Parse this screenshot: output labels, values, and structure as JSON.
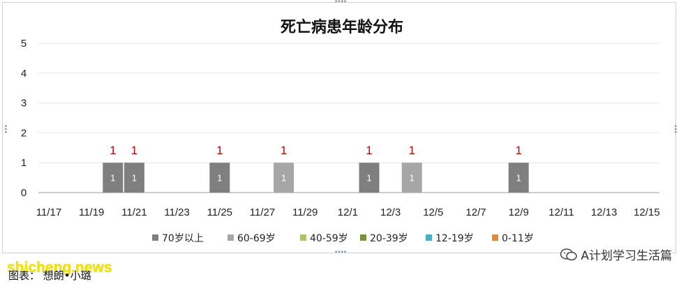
{
  "chart_data": {
    "type": "bar",
    "title": "死亡病患年龄分布",
    "x_tick_labels": [
      "11/17",
      "11/19",
      "11/21",
      "11/23",
      "11/25",
      "11/27",
      "11/29",
      "12/1",
      "12/3",
      "12/5",
      "12/7",
      "12/9",
      "12/11",
      "12/13",
      "12/15"
    ],
    "ylim": [
      0,
      5
    ],
    "y_ticks": [
      0,
      1,
      2,
      3,
      4,
      5
    ],
    "grid": true,
    "legend_position": "bottom",
    "series": [
      {
        "name": "70岁以上",
        "color": "#7f7f7f",
        "points": [
          {
            "x": "11/20",
            "value": 1
          },
          {
            "x": "11/21",
            "value": 1
          },
          {
            "x": "11/25",
            "value": 1
          },
          {
            "x": "12/2",
            "value": 1
          },
          {
            "x": "12/9",
            "value": 1
          }
        ]
      },
      {
        "name": "60-69岁",
        "color": "#a6a6a6",
        "points": [
          {
            "x": "11/28",
            "value": 1
          },
          {
            "x": "12/4",
            "value": 1
          }
        ]
      },
      {
        "name": "40-59岁",
        "color": "#a9c46a",
        "points": []
      },
      {
        "name": "20-39岁",
        "color": "#76923c",
        "points": []
      },
      {
        "name": "12-19岁",
        "color": "#4bacc6",
        "points": []
      },
      {
        "name": "0-11岁",
        "color": "#e08b3a",
        "points": []
      }
    ],
    "data_label_color": "#c0000b"
  },
  "watermark": {
    "text": "A计划学习生活篇",
    "icon": "wechat-icon"
  },
  "site_watermark": "shicheng.news",
  "caption": "图表： 想朗•小璐"
}
